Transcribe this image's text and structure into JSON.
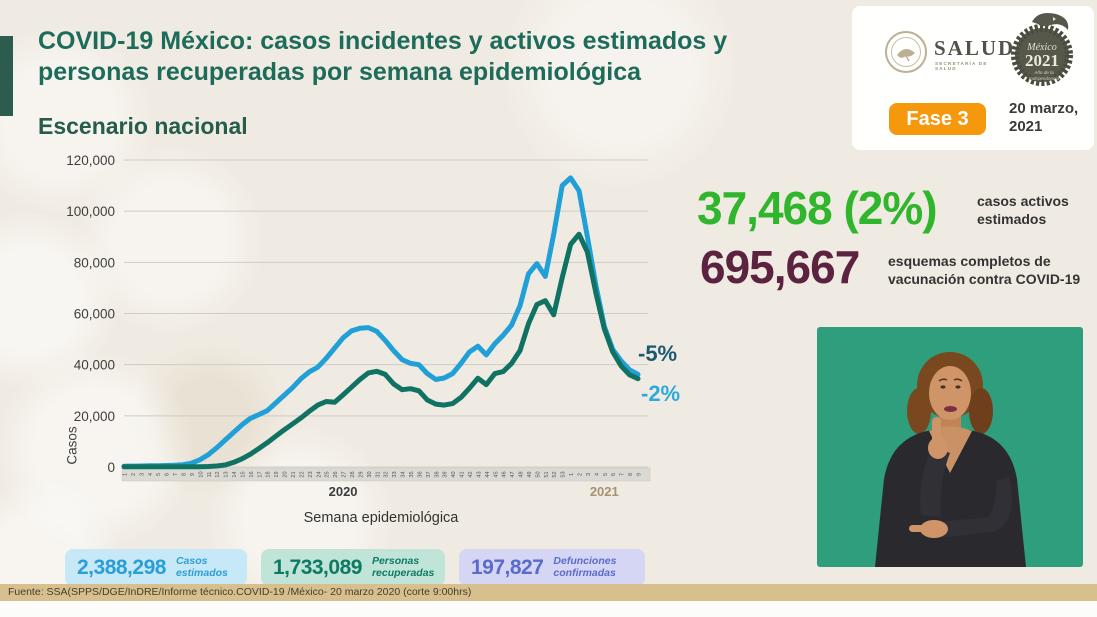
{
  "header": {
    "title_line1": "COVID-19 México: casos incidentes y activos estimados y",
    "title_line2": "personas recuperadas por semana epidemiológica",
    "subtitle": "Escenario nacional",
    "phase_badge": "Fase 3",
    "date_line1": "20 marzo,",
    "date_line2": "2021",
    "logos": {
      "salud_word": "SALUD",
      "salud_sub": "SECRETARÍA DE SALUD",
      "mexico_script": "México",
      "mexico_year": "2021",
      "mexico_sub": "Año de la Independencia"
    }
  },
  "chart_data": {
    "type": "line",
    "title": "",
    "xlabel": "Semana epidemiológica",
    "ylabel": "Casos",
    "ylim": [
      0,
      120000
    ],
    "ytick_step": 20000,
    "grid": true,
    "legend_position": "none",
    "x_groups": [
      {
        "label": "2020",
        "weeks": 53,
        "label_color": "#3c3c3c"
      },
      {
        "label": "2021",
        "weeks": 9,
        "label_color": "#a8916f"
      }
    ],
    "series": [
      {
        "name": "Casos incidentes estimados",
        "color": "#21a0d8",
        "values": [
          300,
          350,
          400,
          450,
          500,
          600,
          700,
          900,
          1500,
          2800,
          4800,
          7500,
          10500,
          13500,
          16500,
          19000,
          20500,
          22000,
          25000,
          28000,
          31000,
          34500,
          37200,
          39000,
          42500,
          46500,
          50500,
          53200,
          54200,
          54500,
          53000,
          49500,
          45500,
          42000,
          40500,
          40000,
          36500,
          34200,
          34800,
          36500,
          40500,
          45000,
          47200,
          43800,
          48200,
          51500,
          55500,
          63000,
          75500,
          79500,
          74500,
          91000,
          110000,
          113000,
          108000,
          90000,
          71000,
          55000,
          46000,
          41500,
          38000,
          36200
        ]
      },
      {
        "name": "Personas recuperadas",
        "color": "#107263",
        "values": [
          100,
          100,
          100,
          100,
          100,
          100,
          100,
          100,
          100,
          100,
          200,
          400,
          800,
          1800,
          3200,
          5000,
          7200,
          9500,
          12000,
          14500,
          16800,
          19200,
          21800,
          24200,
          25600,
          25300,
          28200,
          31200,
          34200,
          36800,
          37400,
          36200,
          32500,
          30200,
          30600,
          29800,
          26200,
          24600,
          24200,
          24800,
          27200,
          30800,
          34700,
          32200,
          36500,
          37300,
          40500,
          45500,
          56000,
          63500,
          65000,
          59500,
          74000,
          87000,
          91000,
          84000,
          68000,
          54000,
          45000,
          39500,
          36000,
          34500
        ]
      }
    ],
    "annotations": [
      {
        "text": "-5%",
        "color": "#1a5a70"
      },
      {
        "text": "-2%",
        "color": "#2ea9dd"
      }
    ]
  },
  "kpis": [
    {
      "value": "37,468 (2%)",
      "label": "casos activos estimados",
      "color": "#2fb62c"
    },
    {
      "value": "695,667",
      "label": "esquemas completos de vacunación contra COVID-19",
      "color": "#5c2340"
    }
  ],
  "summary_boxes": [
    {
      "value": "2,388,298",
      "label": "Casos estimados",
      "bg": "#c7e9f7",
      "color": "#2b9ed6"
    },
    {
      "value": "1,733,089",
      "label": "Personas recuperadas",
      "bg": "#c0e4d8",
      "color": "#0e7a64"
    },
    {
      "value": "197,827",
      "label": "Defunciones confirmadas",
      "bg": "#d4d6f4",
      "color": "#5a6bcb"
    }
  ],
  "footer": {
    "source": "Fuente: SSA(SPPS/DGE/InDRE/Informe técnico.COVID-19 /México- 20 marzo 2020 (corte 9:00hrs)"
  },
  "colors": {
    "phase_badge_bg": "#f6980e",
    "footer_bar_bg": "#d8bf8e",
    "interpreter_bg": "#2f9e7c",
    "title_green": "#1d6b5a"
  }
}
